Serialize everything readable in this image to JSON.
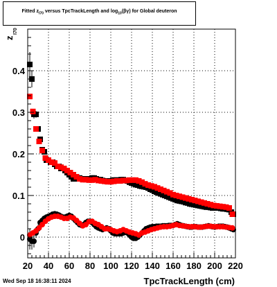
{
  "title": {
    "pre": "Fitted  z",
    "sub1": "I70",
    "mid": " versus TpcTrackLength and log",
    "sub2": "10",
    "post": "(βγ) for Global deuteron"
  },
  "footer": {
    "date": "Wed Sep 18 16:38:11 2024"
  },
  "chart_data": {
    "type": "scatter",
    "title": "Fitted z_I70 versus TpcTrackLength and log10(βγ) for Global deuteron",
    "xlabel": "TpcTrackLength (cm)",
    "ylabel": "z",
    "ylabel_sub": "I70",
    "xlim": [
      20,
      220
    ],
    "ylim": [
      -0.05,
      0.5
    ],
    "xticks": [
      20,
      40,
      60,
      80,
      100,
      120,
      140,
      160,
      180,
      200,
      220
    ],
    "yticks": [
      0,
      0.1,
      0.2,
      0.3,
      0.4
    ],
    "ytick_labels": [
      "0",
      "0.1",
      "0.2",
      "0.3",
      "0.4"
    ],
    "grid": true,
    "series": [
      {
        "marker": "square",
        "color": "#000000",
        "x": [
          22,
          24,
          26,
          28,
          30,
          32,
          34,
          36,
          38,
          40,
          42,
          44,
          46,
          48,
          50,
          52,
          54,
          56,
          58,
          60,
          62,
          64,
          66,
          68,
          70,
          72,
          74,
          76,
          78,
          80,
          82,
          84,
          86,
          88,
          90,
          92,
          94,
          96,
          98,
          100,
          102,
          104,
          106,
          108,
          110,
          112,
          114,
          116,
          118,
          120,
          122,
          124,
          126,
          128,
          130,
          132,
          134,
          136,
          138,
          140,
          142,
          144,
          146,
          148,
          150,
          152,
          154,
          156,
          158,
          160,
          162,
          164,
          166,
          168,
          170,
          172,
          174,
          176,
          178,
          180,
          182,
          184,
          186,
          188,
          190,
          192,
          194,
          196,
          198,
          200,
          202,
          204,
          206,
          208,
          210,
          212,
          214,
          216,
          218
        ],
        "y": [
          0.415,
          0.38,
          0.295,
          0.295,
          0.26,
          0.235,
          0.21,
          0.205,
          0.185,
          0.185,
          0.18,
          0.18,
          0.175,
          0.17,
          0.17,
          0.165,
          0.165,
          0.16,
          0.155,
          0.15,
          0.145,
          0.14,
          0.14,
          0.14,
          0.142,
          0.14,
          0.14,
          0.14,
          0.14,
          0.14,
          0.142,
          0.142,
          0.14,
          0.138,
          0.138,
          0.136,
          0.135,
          0.134,
          0.135,
          0.135,
          0.137,
          0.137,
          0.137,
          0.137,
          0.138,
          0.138,
          0.136,
          0.135,
          0.132,
          0.13,
          0.128,
          0.126,
          0.125,
          0.123,
          0.122,
          0.121,
          0.12,
          0.118,
          0.115,
          0.113,
          0.11,
          0.108,
          0.106,
          0.104,
          0.102,
          0.1,
          0.098,
          0.096,
          0.094,
          0.092,
          0.09,
          0.088,
          0.087,
          0.086,
          0.085,
          0.083,
          0.082,
          0.08,
          0.079,
          0.078,
          0.077,
          0.076,
          0.075,
          0.074,
          0.073,
          0.072,
          0.072,
          0.071,
          0.07,
          0.07,
          0.07,
          0.07,
          0.069,
          0.068,
          0.068,
          0.067,
          0.066,
          0.06,
          0.055
        ],
        "yerr": [
          0.03,
          0.02,
          0.01,
          0.008,
          0.006,
          0.005,
          0.005,
          0.004,
          0.004,
          0.004,
          0.004,
          0.004,
          0.004,
          0.004,
          0.004,
          0.004,
          0.004,
          0.004,
          0.004,
          0.004,
          0.004,
          0.004,
          0.004,
          0.004,
          0.004,
          0.004,
          0.004,
          0.004,
          0.004,
          0.004,
          0.004,
          0.004,
          0.004,
          0.004,
          0.004,
          0.004,
          0.004,
          0.004,
          0.004,
          0.004,
          0.004,
          0.004,
          0.004,
          0.004,
          0.004,
          0.004,
          0.004,
          0.004,
          0.004,
          0.004,
          0.004,
          0.004,
          0.004,
          0.004,
          0.004,
          0.004,
          0.004,
          0.004,
          0.004,
          0.004,
          0.004,
          0.004,
          0.004,
          0.004,
          0.004,
          0.004,
          0.004,
          0.004,
          0.004,
          0.004,
          0.004,
          0.004,
          0.004,
          0.004,
          0.004,
          0.004,
          0.004,
          0.004,
          0.004,
          0.004,
          0.004,
          0.004,
          0.004,
          0.004,
          0.004,
          0.004,
          0.004,
          0.004,
          0.004,
          0.004,
          0.004,
          0.004,
          0.004,
          0.004,
          0.004,
          0.004,
          0.004,
          0.004,
          0.004
        ]
      },
      {
        "marker": "square",
        "color": "#ff0000",
        "x": [
          22,
          25,
          28,
          31,
          34,
          37,
          40,
          43,
          46,
          49,
          52,
          55,
          58,
          61,
          64,
          67,
          70,
          73,
          76,
          79,
          82,
          85,
          88,
          91,
          94,
          97,
          100,
          103,
          106,
          109,
          112,
          115,
          118,
          121,
          124,
          127,
          130,
          133,
          136,
          139,
          142,
          145,
          148,
          151,
          154,
          157,
          160,
          163,
          166,
          169,
          172,
          175,
          178,
          181,
          184,
          187,
          190,
          193,
          196,
          199,
          202,
          205,
          208,
          211,
          214,
          217
        ],
        "y": [
          0.338,
          0.302,
          0.26,
          0.23,
          0.208,
          0.19,
          0.185,
          0.18,
          0.178,
          0.17,
          0.168,
          0.165,
          0.16,
          0.155,
          0.15,
          0.145,
          0.14,
          0.138,
          0.138,
          0.137,
          0.137,
          0.138,
          0.136,
          0.135,
          0.134,
          0.133,
          0.133,
          0.134,
          0.135,
          0.135,
          0.136,
          0.136,
          0.137,
          0.137,
          0.137,
          0.135,
          0.132,
          0.128,
          0.125,
          0.123,
          0.121,
          0.118,
          0.115,
          0.112,
          0.109,
          0.106,
          0.102,
          0.1,
          0.098,
          0.096,
          0.094,
          0.092,
          0.09,
          0.088,
          0.086,
          0.084,
          0.082,
          0.08,
          0.078,
          0.076,
          0.075,
          0.074,
          0.073,
          0.072,
          0.07,
          0.055
        ],
        "yerr": []
      },
      {
        "marker": "circle",
        "color": "#000000",
        "x": [
          22,
          24,
          26,
          28,
          30,
          32,
          34,
          36,
          38,
          40,
          42,
          44,
          46,
          48,
          50,
          52,
          54,
          56,
          58,
          60,
          62,
          64,
          66,
          68,
          70,
          72,
          74,
          76,
          78,
          80,
          82,
          84,
          86,
          88,
          90,
          92,
          94,
          96,
          98,
          100,
          102,
          104,
          106,
          108,
          110,
          112,
          114,
          116,
          118,
          120,
          122,
          124,
          126,
          128,
          130,
          132,
          134,
          136,
          138,
          140,
          142,
          144,
          146,
          148,
          150,
          152,
          154,
          156,
          158,
          160,
          162,
          164,
          166,
          168,
          170,
          172,
          174,
          176,
          178,
          180,
          182,
          184,
          186,
          188,
          190,
          192,
          194,
          196,
          198,
          200,
          202,
          204,
          206,
          208,
          210,
          212,
          214,
          216,
          218
        ],
        "y": [
          -0.005,
          -0.01,
          -0.01,
          0.01,
          0.02,
          0.035,
          0.04,
          0.045,
          0.048,
          0.05,
          0.052,
          0.055,
          0.056,
          0.055,
          0.053,
          0.05,
          0.048,
          0.048,
          0.05,
          0.052,
          0.05,
          0.045,
          0.04,
          0.035,
          0.03,
          0.028,
          0.03,
          0.035,
          0.038,
          0.038,
          0.035,
          0.03,
          0.025,
          0.022,
          0.02,
          0.018,
          0.02,
          0.022,
          0.02,
          0.015,
          0.01,
          0.008,
          0.008,
          0.008,
          0.008,
          0.01,
          0.012,
          0.01,
          0.005,
          0.0,
          -0.003,
          -0.003,
          0.0,
          0.005,
          0.01,
          0.015,
          0.02,
          0.022,
          0.024,
          0.025,
          0.025,
          0.026,
          0.026,
          0.026,
          0.027,
          0.027,
          0.027,
          0.028,
          0.028,
          0.028,
          0.03,
          0.032,
          0.03,
          0.028,
          0.027,
          0.026,
          0.025,
          0.024,
          0.024,
          0.025,
          0.025,
          0.024,
          0.024,
          0.024,
          0.025,
          0.026,
          0.027,
          0.026,
          0.025,
          0.024,
          0.025,
          0.026,
          0.026,
          0.026,
          0.025,
          0.024,
          0.022,
          0.02,
          0.018
        ],
        "yerr": [
          0.025,
          0.02,
          0.015,
          0.012,
          0.01,
          0.008,
          0.007,
          0.006,
          0.006,
          0.005,
          0.005,
          0.005,
          0.005,
          0.005,
          0.005,
          0.005,
          0.005,
          0.005,
          0.005,
          0.005,
          0.005,
          0.005,
          0.005,
          0.005,
          0.005,
          0.005,
          0.005,
          0.005,
          0.005,
          0.005,
          0.005,
          0.005,
          0.005,
          0.005,
          0.005,
          0.005,
          0.005,
          0.005,
          0.005,
          0.005,
          0.005,
          0.005,
          0.005,
          0.005,
          0.005,
          0.005,
          0.005,
          0.005,
          0.005,
          0.005,
          0.005,
          0.005,
          0.005,
          0.005,
          0.005,
          0.005,
          0.005,
          0.005,
          0.005,
          0.005,
          0.005,
          0.005,
          0.005,
          0.005,
          0.005,
          0.005,
          0.005,
          0.005,
          0.005,
          0.005,
          0.005,
          0.005,
          0.005,
          0.005,
          0.005,
          0.005,
          0.005,
          0.005,
          0.005,
          0.005,
          0.005,
          0.005,
          0.005,
          0.005,
          0.005,
          0.005,
          0.005,
          0.005,
          0.005,
          0.005,
          0.005,
          0.005,
          0.005,
          0.005,
          0.005,
          0.005,
          0.005,
          0.005,
          0.005
        ]
      },
      {
        "marker": "circle",
        "color": "#ff0000",
        "x": [
          22,
          25,
          28,
          31,
          34,
          37,
          40,
          43,
          46,
          49,
          52,
          55,
          58,
          61,
          64,
          67,
          70,
          73,
          76,
          79,
          82,
          85,
          88,
          91,
          94,
          97,
          100,
          103,
          106,
          109,
          112,
          115,
          118,
          121,
          124,
          127,
          130,
          133,
          136,
          139,
          142,
          145,
          148,
          151,
          154,
          157,
          160,
          163,
          166,
          169,
          172,
          175,
          178,
          181,
          184,
          187,
          190,
          193,
          196,
          199,
          202,
          205,
          208,
          211,
          214,
          217
        ],
        "y": [
          0.005,
          0.01,
          0.015,
          0.022,
          0.03,
          0.038,
          0.044,
          0.048,
          0.05,
          0.05,
          0.048,
          0.045,
          0.045,
          0.048,
          0.046,
          0.04,
          0.033,
          0.027,
          0.03,
          0.037,
          0.038,
          0.033,
          0.03,
          0.025,
          0.02,
          0.02,
          0.018,
          0.015,
          0.013,
          0.015,
          0.018,
          0.015,
          0.012,
          0.01,
          0.008,
          0.005,
          0.01,
          0.012,
          0.015,
          0.018,
          0.02,
          0.022,
          0.024,
          0.025,
          0.025,
          0.026,
          0.028,
          0.03,
          0.028,
          0.027,
          0.026,
          0.025,
          0.025,
          0.025,
          0.024,
          0.024,
          0.025,
          0.026,
          0.026,
          0.025,
          0.025,
          0.025,
          0.025,
          0.024,
          0.023,
          0.022
        ],
        "yerr": []
      }
    ]
  }
}
